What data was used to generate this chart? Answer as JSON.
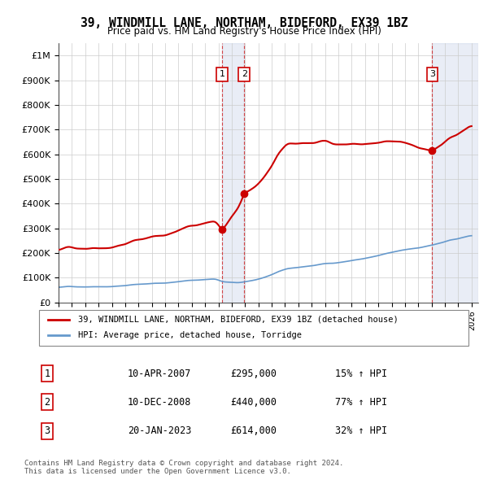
{
  "title": "39, WINDMILL LANE, NORTHAM, BIDEFORD, EX39 1BZ",
  "subtitle": "Price paid vs. HM Land Registry's House Price Index (HPI)",
  "ylabel_ticks": [
    "£0",
    "£100K",
    "£200K",
    "£300K",
    "£400K",
    "£500K",
    "£600K",
    "£700K",
    "£800K",
    "£900K",
    "£1M"
  ],
  "ytick_values": [
    0,
    100000,
    200000,
    300000,
    400000,
    500000,
    600000,
    700000,
    800000,
    900000,
    1000000
  ],
  "ylim": [
    0,
    1050000
  ],
  "xlim_start": 1995.0,
  "xlim_end": 2026.5,
  "transactions": [
    {
      "date": 2007.27,
      "price": 295000,
      "label": "1"
    },
    {
      "date": 2008.94,
      "price": 440000,
      "label": "2"
    },
    {
      "date": 2023.05,
      "price": 614000,
      "label": "3"
    }
  ],
  "transaction_table": [
    {
      "num": "1",
      "date": "10-APR-2007",
      "price": "£295,000",
      "pct": "15% ↑ HPI"
    },
    {
      "num": "2",
      "date": "10-DEC-2008",
      "price": "£440,000",
      "pct": "77% ↑ HPI"
    },
    {
      "num": "3",
      "date": "20-JAN-2023",
      "price": "£614,000",
      "pct": "32% ↑ HPI"
    }
  ],
  "legend_labels": [
    "39, WINDMILL LANE, NORTHAM, BIDEFORD, EX39 1BZ (detached house)",
    "HPI: Average price, detached house, Torridge"
  ],
  "red_color": "#cc0000",
  "blue_color": "#6699cc",
  "hatch_color": "#aabbdd",
  "footer": "Contains HM Land Registry data © Crown copyright and database right 2024.\nThis data is licensed under the Open Government Licence v3.0.",
  "background_color": "#ffffff",
  "grid_color": "#cccccc"
}
